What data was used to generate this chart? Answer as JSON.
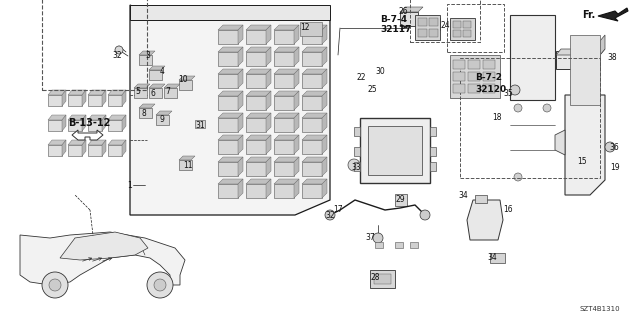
{
  "background_color": "#ffffff",
  "line_color": "#1a1a1a",
  "diagram_code": "SZT4B1310",
  "fig_w": 6.4,
  "fig_h": 3.19,
  "dpi": 100,
  "xlim": [
    0,
    640
  ],
  "ylim": [
    0,
    319
  ]
}
